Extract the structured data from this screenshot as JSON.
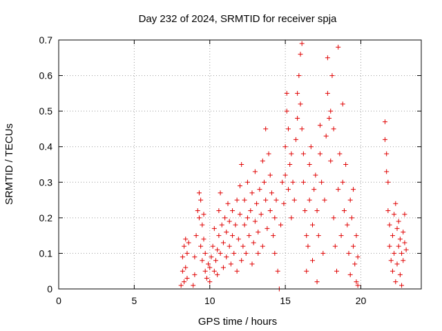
{
  "chart_data": {
    "type": "scatter",
    "title": "Day 232 of 2024, SRMTID for receiver spja",
    "xlabel": "GPS time / hours",
    "ylabel": "SRMTID / TECUs",
    "xlim": [
      0,
      24
    ],
    "ylim": [
      0,
      0.7
    ],
    "x_ticks": [
      0,
      5,
      10,
      15,
      20
    ],
    "x_tick_labels": [
      "0",
      "5",
      "10",
      "15",
      "20"
    ],
    "y_ticks": [
      0,
      0.1,
      0.2,
      0.3,
      0.4,
      0.5,
      0.6,
      0.7
    ],
    "y_tick_labels": [
      "0",
      "0.1",
      "0.2",
      "0.3",
      "0.4",
      "0.5",
      "0.6",
      "0.7"
    ],
    "grid": true,
    "marker": "+",
    "color": "#e00000",
    "series": [
      {
        "name": "SRMTID",
        "description": "dense scatter of SRMTID samples, estimated from plot",
        "points": [
          [
            8.1,
            0.01
          ],
          [
            8.2,
            0.05
          ],
          [
            8.2,
            0.09
          ],
          [
            8.3,
            0.02
          ],
          [
            8.3,
            0.12
          ],
          [
            8.4,
            0.14
          ],
          [
            8.4,
            0.06
          ],
          [
            8.5,
            0.03
          ],
          [
            8.5,
            0.1
          ],
          [
            8.6,
            0.13
          ],
          [
            8.9,
            0.01
          ],
          [
            9.0,
            0.04
          ],
          [
            9.0,
            0.09
          ],
          [
            9.1,
            0.15
          ],
          [
            9.2,
            0.22
          ],
          [
            9.3,
            0.27
          ],
          [
            9.3,
            0.2
          ],
          [
            9.4,
            0.25
          ],
          [
            9.4,
            0.12
          ],
          [
            9.5,
            0.18
          ],
          [
            9.5,
            0.08
          ],
          [
            9.6,
            0.21
          ],
          [
            9.6,
            0.14
          ],
          [
            9.7,
            0.05
          ],
          [
            9.7,
            0.1
          ],
          [
            9.8,
            0.03
          ],
          [
            9.9,
            0.07
          ],
          [
            10.0,
            0.02
          ],
          [
            10.0,
            0.06
          ],
          [
            10.1,
            0.09
          ],
          [
            10.2,
            0.12
          ],
          [
            10.3,
            0.05
          ],
          [
            10.3,
            0.17
          ],
          [
            10.4,
            0.08
          ],
          [
            10.5,
            0.11
          ],
          [
            10.5,
            0.04
          ],
          [
            10.6,
            0.15
          ],
          [
            10.6,
            0.22
          ],
          [
            10.7,
            0.27
          ],
          [
            10.7,
            0.1
          ],
          [
            10.8,
            0.18
          ],
          [
            10.9,
            0.13
          ],
          [
            10.9,
            0.06
          ],
          [
            11.0,
            0.2
          ],
          [
            11.1,
            0.16
          ],
          [
            11.1,
            0.09
          ],
          [
            11.2,
            0.24
          ],
          [
            11.3,
            0.12
          ],
          [
            11.3,
            0.19
          ],
          [
            11.4,
            0.07
          ],
          [
            11.5,
            0.15
          ],
          [
            11.5,
            0.22
          ],
          [
            11.6,
            0.1
          ],
          [
            11.7,
            0.18
          ],
          [
            11.8,
            0.25
          ],
          [
            11.8,
            0.05
          ],
          [
            11.9,
            0.14
          ],
          [
            12.0,
            0.29
          ],
          [
            12.0,
            0.21
          ],
          [
            12.1,
            0.35
          ],
          [
            12.1,
            0.08
          ],
          [
            12.2,
            0.12
          ],
          [
            12.3,
            0.18
          ],
          [
            12.3,
            0.25
          ],
          [
            12.4,
            0.1
          ],
          [
            12.5,
            0.2
          ],
          [
            12.5,
            0.3
          ],
          [
            12.6,
            0.15
          ],
          [
            12.7,
            0.22
          ],
          [
            12.8,
            0.07
          ],
          [
            12.8,
            0.27
          ],
          [
            12.9,
            0.13
          ],
          [
            13.0,
            0.19
          ],
          [
            13.0,
            0.33
          ],
          [
            13.1,
            0.24
          ],
          [
            13.2,
            0.1
          ],
          [
            13.2,
            0.16
          ],
          [
            13.3,
            0.28
          ],
          [
            13.4,
            0.21
          ],
          [
            13.5,
            0.36
          ],
          [
            13.5,
            0.12
          ],
          [
            13.6,
            0.3
          ],
          [
            13.7,
            0.45
          ],
          [
            13.7,
            0.25
          ],
          [
            13.8,
            0.17
          ],
          [
            13.9,
            0.38
          ],
          [
            14.0,
            0.32
          ],
          [
            14.0,
            0.22
          ],
          [
            14.1,
            0.27
          ],
          [
            14.2,
            0.15
          ],
          [
            14.3,
            0.2
          ],
          [
            14.3,
            0.1
          ],
          [
            14.4,
            0.25
          ],
          [
            14.5,
            0.05
          ],
          [
            14.6,
            0.0
          ],
          [
            14.7,
            0.18
          ],
          [
            14.8,
            0.3
          ],
          [
            14.9,
            0.24
          ],
          [
            15.0,
            0.4
          ],
          [
            15.0,
            0.32
          ],
          [
            15.1,
            0.5
          ],
          [
            15.1,
            0.55
          ],
          [
            15.2,
            0.45
          ],
          [
            15.2,
            0.28
          ],
          [
            15.3,
            0.35
          ],
          [
            15.4,
            0.2
          ],
          [
            15.4,
            0.38
          ],
          [
            15.5,
            0.3
          ],
          [
            15.6,
            0.25
          ],
          [
            15.7,
            0.42
          ],
          [
            15.8,
            0.48
          ],
          [
            15.8,
            0.55
          ],
          [
            15.9,
            0.6
          ],
          [
            16.0,
            0.66
          ],
          [
            16.0,
            0.52
          ],
          [
            16.1,
            0.69
          ],
          [
            16.1,
            0.45
          ],
          [
            16.2,
            0.3
          ],
          [
            16.2,
            0.38
          ],
          [
            16.3,
            0.22
          ],
          [
            16.4,
            0.15
          ],
          [
            16.4,
            0.05
          ],
          [
            16.5,
            0.12
          ],
          [
            16.6,
            0.25
          ],
          [
            16.6,
            0.35
          ],
          [
            16.7,
            0.4
          ],
          [
            16.8,
            0.18
          ],
          [
            16.8,
            0.08
          ],
          [
            16.9,
            0.28
          ],
          [
            17.0,
            0.32
          ],
          [
            17.1,
            0.22
          ],
          [
            17.1,
            0.02
          ],
          [
            17.2,
            0.15
          ],
          [
            17.3,
            0.46
          ],
          [
            17.3,
            0.38
          ],
          [
            17.4,
            0.3
          ],
          [
            17.5,
            0.1
          ],
          [
            17.6,
            0.25
          ],
          [
            17.7,
            0.43
          ],
          [
            17.8,
            0.55
          ],
          [
            17.8,
            0.65
          ],
          [
            17.9,
            0.48
          ],
          [
            18.0,
            0.5
          ],
          [
            18.0,
            0.36
          ],
          [
            18.1,
            0.6
          ],
          [
            18.2,
            0.45
          ],
          [
            18.2,
            0.2
          ],
          [
            18.3,
            0.12
          ],
          [
            18.4,
            0.05
          ],
          [
            18.5,
            0.68
          ],
          [
            18.5,
            0.28
          ],
          [
            18.6,
            0.38
          ],
          [
            18.7,
            0.15
          ],
          [
            18.8,
            0.52
          ],
          [
            18.8,
            0.3
          ],
          [
            18.9,
            0.22
          ],
          [
            19.0,
            0.35
          ],
          [
            19.1,
            0.18
          ],
          [
            19.2,
            0.1
          ],
          [
            19.3,
            0.25
          ],
          [
            19.3,
            0.04
          ],
          [
            19.4,
            0.2
          ],
          [
            19.5,
            0.12
          ],
          [
            19.5,
            0.28
          ],
          [
            19.6,
            0.07
          ],
          [
            19.7,
            0.15
          ],
          [
            19.7,
            0.02
          ],
          [
            19.8,
            0.09
          ],
          [
            19.8,
            0.01
          ],
          [
            21.6,
            0.47
          ],
          [
            21.6,
            0.42
          ],
          [
            21.7,
            0.38
          ],
          [
            21.7,
            0.33
          ],
          [
            21.8,
            0.3
          ],
          [
            21.8,
            0.22
          ],
          [
            21.9,
            0.18
          ],
          [
            21.9,
            0.12
          ],
          [
            22.0,
            0.08
          ],
          [
            22.1,
            0.05
          ],
          [
            22.1,
            0.15
          ],
          [
            22.2,
            0.21
          ],
          [
            22.2,
            0.1
          ],
          [
            22.3,
            0.24
          ],
          [
            22.3,
            0.02
          ],
          [
            22.4,
            0.17
          ],
          [
            22.4,
            0.07
          ],
          [
            22.5,
            0.12
          ],
          [
            22.5,
            0.19
          ],
          [
            22.6,
            0.04
          ],
          [
            22.6,
            0.14
          ],
          [
            22.7,
            0.1
          ],
          [
            22.7,
            0.01
          ],
          [
            22.8,
            0.16
          ],
          [
            22.8,
            0.08
          ],
          [
            22.9,
            0.13
          ],
          [
            22.9,
            0.21
          ],
          [
            23.0,
            0.11
          ]
        ]
      }
    ]
  }
}
